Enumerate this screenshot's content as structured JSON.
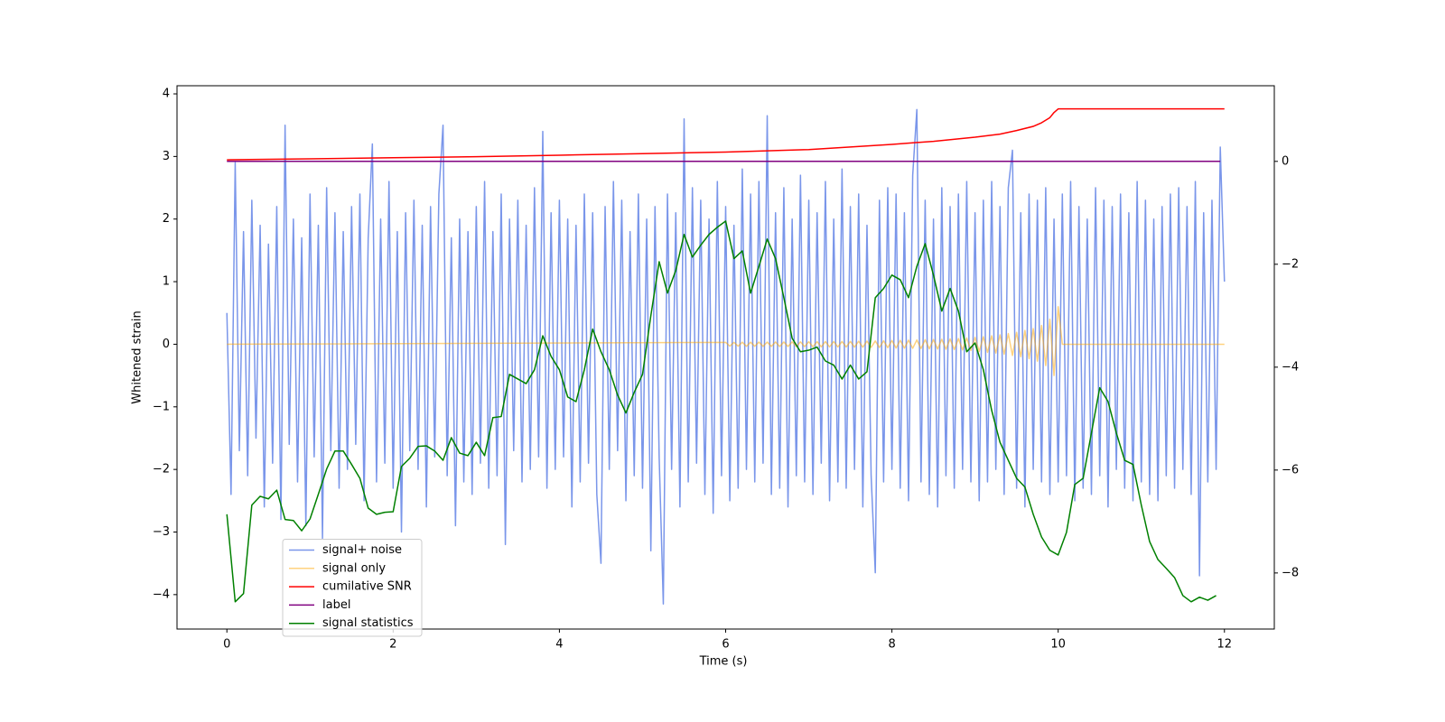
{
  "chart_data": {
    "type": "line",
    "xlabel": "Time (s)",
    "ylabel": "Whitened strain",
    "xlim": [
      -0.6,
      12.6
    ],
    "xticks": [
      0,
      2,
      4,
      6,
      8,
      10,
      12
    ],
    "ylim": [
      -4.55,
      4.13
    ],
    "yticks": [
      {
        "value": -4,
        "label": "−4"
      },
      {
        "value": -3,
        "label": "−3"
      },
      {
        "value": -2,
        "label": "−2"
      },
      {
        "value": -1,
        "label": "−1"
      },
      0,
      1,
      2,
      3,
      4
    ],
    "y2lim": [
      -9.09,
      1.47
    ],
    "y2ticks": [
      {
        "value": -8,
        "label": "−8"
      },
      {
        "value": -6,
        "label": "−6"
      },
      {
        "value": -4,
        "label": "−4"
      },
      {
        "value": -2,
        "label": "−2"
      },
      0
    ],
    "legend": "lower left",
    "series": [
      {
        "name": "signal+ noise",
        "color": "#4169e1",
        "opacity": 0.7,
        "x": [
          0,
          0.05,
          0.1,
          0.15,
          0.2,
          0.25,
          0.3,
          0.35,
          0.4,
          0.45,
          0.5,
          0.55,
          0.6,
          0.65,
          0.7,
          0.75,
          0.8,
          0.85,
          0.9,
          0.95,
          1,
          1.05,
          1.1,
          1.15,
          1.2,
          1.25,
          1.3,
          1.35,
          1.4,
          1.45,
          1.5,
          1.55,
          1.6,
          1.65,
          1.7,
          1.75,
          1.8,
          1.85,
          1.9,
          1.95,
          2,
          2.05,
          2.1,
          2.15,
          2.2,
          2.25,
          2.3,
          2.35,
          2.4,
          2.45,
          2.5,
          2.55,
          2.6,
          2.65,
          2.7,
          2.75,
          2.8,
          2.85,
          2.9,
          2.95,
          3,
          3.05,
          3.1,
          3.15,
          3.2,
          3.25,
          3.3,
          3.35,
          3.4,
          3.45,
          3.5,
          3.55,
          3.6,
          3.65,
          3.7,
          3.75,
          3.8,
          3.85,
          3.9,
          3.95,
          4,
          4.05,
          4.1,
          4.15,
          4.2,
          4.25,
          4.3,
          4.35,
          4.4,
          4.45,
          4.5,
          4.55,
          4.6,
          4.65,
          4.7,
          4.75,
          4.8,
          4.85,
          4.9,
          4.95,
          5,
          5.05,
          5.1,
          5.15,
          5.2,
          5.25,
          5.3,
          5.35,
          5.4,
          5.45,
          5.5,
          5.55,
          5.6,
          5.65,
          5.7,
          5.75,
          5.8,
          5.85,
          5.9,
          5.95,
          6,
          6.05,
          6.1,
          6.15,
          6.2,
          6.25,
          6.3,
          6.35,
          6.4,
          6.45,
          6.5,
          6.55,
          6.6,
          6.65,
          6.7,
          6.75,
          6.8,
          6.85,
          6.9,
          6.95,
          7,
          7.05,
          7.1,
          7.15,
          7.2,
          7.25,
          7.3,
          7.35,
          7.4,
          7.45,
          7.5,
          7.55,
          7.6,
          7.65,
          7.7,
          7.75,
          7.8,
          7.85,
          7.9,
          7.95,
          8,
          8.05,
          8.1,
          8.15,
          8.2,
          8.25,
          8.3,
          8.35,
          8.4,
          8.45,
          8.5,
          8.55,
          8.6,
          8.65,
          8.7,
          8.75,
          8.8,
          8.85,
          8.9,
          8.95,
          9,
          9.05,
          9.1,
          9.15,
          9.2,
          9.25,
          9.3,
          9.35,
          9.4,
          9.45,
          9.5,
          9.55,
          9.6,
          9.65,
          9.7,
          9.75,
          9.8,
          9.85,
          9.9,
          9.95,
          10,
          10.05,
          10.1,
          10.15,
          10.2,
          10.25,
          10.3,
          10.35,
          10.4,
          10.45,
          10.5,
          10.55,
          10.6,
          10.65,
          10.7,
          10.75,
          10.8,
          10.85,
          10.9,
          10.95,
          11,
          11.05,
          11.1,
          11.15,
          11.2,
          11.25,
          11.3,
          11.35,
          11.4,
          11.45,
          11.5,
          11.55,
          11.6,
          11.65,
          11.7,
          11.75,
          11.8,
          11.85,
          11.9,
          11.95,
          12
        ],
        "values": [
          0.5,
          -2.4,
          2.9,
          -1.7,
          1.8,
          -2.1,
          2.3,
          -1.5,
          1.9,
          -2.6,
          1.6,
          -1.9,
          2.2,
          -2.8,
          3.5,
          -1.6,
          2.0,
          -2.2,
          1.7,
          -2.9,
          2.4,
          -1.8,
          1.9,
          -3.1,
          2.5,
          -1.7,
          2.1,
          -2.3,
          1.8,
          -2.0,
          2.2,
          -1.6,
          2.4,
          -2.5,
          1.7,
          3.2,
          -2.2,
          2.0,
          -1.9,
          2.6,
          -2.3,
          1.8,
          -3.0,
          2.1,
          -1.7,
          2.3,
          -2.0,
          1.9,
          -2.6,
          2.2,
          -1.8,
          2.4,
          3.5,
          -2.1,
          1.7,
          -2.9,
          2.0,
          -2.2,
          1.8,
          -2.4,
          2.2,
          -1.9,
          2.6,
          -2.3,
          1.8,
          -2.1,
          2.4,
          -3.2,
          2.0,
          -1.7,
          2.3,
          -2.2,
          1.9,
          -2.0,
          2.5,
          -1.8,
          3.4,
          -2.3,
          2.1,
          -2.0,
          2.3,
          -1.8,
          2.0,
          -2.6,
          1.9,
          -2.2,
          2.4,
          -1.9,
          2.1,
          -2.4,
          -3.5,
          2.2,
          -2.0,
          2.6,
          -1.7,
          2.3,
          -2.5,
          1.8,
          -2.1,
          2.4,
          -2.3,
          2.0,
          -3.3,
          2.2,
          -1.8,
          -4.15,
          2.4,
          -2.0,
          2.1,
          -2.6,
          3.6,
          -2.2,
          2.5,
          -1.9,
          2.3,
          -2.4,
          2.0,
          -2.7,
          2.6,
          -2.1,
          2.2,
          -2.5,
          1.9,
          -2.3,
          2.8,
          -2.0,
          2.4,
          -2.2,
          2.6,
          -1.9,
          3.65,
          -2.4,
          2.1,
          -2.3,
          2.5,
          -2.6,
          2.0,
          -2.1,
          2.7,
          -2.2,
          2.3,
          -2.4,
          2.1,
          -1.9,
          2.6,
          -2.5,
          2.0,
          -2.2,
          2.8,
          -2.3,
          2.2,
          -2.0,
          2.4,
          -2.6,
          1.9,
          -2.1,
          -3.65,
          2.3,
          -2.2,
          2.5,
          -2.0,
          2.4,
          -2.3,
          2.1,
          -2.5,
          2.7,
          3.75,
          -2.2,
          2.3,
          -2.4,
          2.0,
          -2.6,
          2.5,
          -2.1,
          2.2,
          -2.3,
          2.4,
          -2.0,
          2.6,
          -2.2,
          2.1,
          -2.5,
          2.3,
          -2.2,
          2.6,
          -2.0,
          2.2,
          -2.4,
          2.5,
          3.1,
          -2.3,
          2.1,
          -2.6,
          2.4,
          -2.0,
          2.3,
          -2.2,
          2.5,
          -2.4,
          2.0,
          -2.2,
          2.4,
          -2.1,
          2.6,
          -2.5,
          2.2,
          -2.3,
          2.0,
          -2.4,
          2.5,
          -2.1,
          2.3,
          -2.6,
          2.2,
          -2.0,
          2.4,
          -2.3,
          2.1,
          -2.5,
          2.6,
          -2.2,
          2.3,
          -2.4,
          2.0,
          -2.5,
          2.2,
          -2.1,
          2.4,
          -2.3,
          2.5,
          -2.0,
          2.2,
          -2.4,
          2.6,
          -3.7,
          2.1,
          -2.2,
          2.3,
          -2.0,
          3.15,
          1.0
        ]
      },
      {
        "name": "signal only",
        "color": "#ffa500",
        "opacity": 0.5,
        "x": [
          0,
          6,
          6.05,
          6.1,
          6.15,
          6.2,
          6.25,
          6.3,
          6.35,
          6.4,
          6.45,
          6.5,
          6.55,
          6.6,
          6.65,
          6.7,
          6.75,
          6.8,
          6.85,
          6.9,
          6.95,
          7,
          7.05,
          7.1,
          7.15,
          7.2,
          7.25,
          7.3,
          7.35,
          7.4,
          7.45,
          7.5,
          7.55,
          7.6,
          7.65,
          7.7,
          7.75,
          7.8,
          7.85,
          7.9,
          7.95,
          8,
          8.05,
          8.1,
          8.15,
          8.2,
          8.25,
          8.3,
          8.35,
          8.4,
          8.45,
          8.5,
          8.55,
          8.6,
          8.65,
          8.7,
          8.75,
          8.8,
          8.85,
          8.9,
          8.95,
          9,
          9.05,
          9.1,
          9.15,
          9.2,
          9.25,
          9.3,
          9.35,
          9.4,
          9.45,
          9.5,
          9.55,
          9.6,
          9.65,
          9.7,
          9.75,
          9.8,
          9.85,
          9.9,
          9.95,
          10,
          10.05,
          12
        ],
        "values": [
          0,
          0.03,
          -0.03,
          0.03,
          -0.03,
          0.032,
          -0.032,
          0.032,
          -0.032,
          0.034,
          -0.034,
          0.034,
          -0.034,
          0.036,
          -0.036,
          0.036,
          -0.036,
          0.038,
          -0.038,
          0.038,
          -0.038,
          0.04,
          -0.04,
          0.041,
          -0.041,
          0.042,
          -0.042,
          0.043,
          -0.043,
          0.044,
          -0.044,
          0.046,
          -0.046,
          0.048,
          -0.048,
          0.05,
          -0.05,
          0.052,
          -0.052,
          0.055,
          -0.055,
          0.06,
          -0.06,
          0.062,
          -0.062,
          0.065,
          -0.065,
          0.068,
          -0.068,
          0.072,
          -0.072,
          0.076,
          -0.076,
          0.08,
          -0.08,
          0.085,
          -0.085,
          0.09,
          -0.09,
          0.1,
          -0.1,
          0.11,
          -0.115,
          0.12,
          -0.13,
          0.135,
          -0.14,
          0.15,
          -0.16,
          0.17,
          -0.18,
          0.19,
          -0.2,
          0.22,
          -0.23,
          0.25,
          -0.27,
          0.3,
          -0.34,
          0.4,
          -0.5,
          0.6,
          0,
          0
        ]
      },
      {
        "name": "cumilative SNR",
        "color": "#ff0000",
        "axis": "y2",
        "x": [
          0,
          1,
          2,
          3,
          4,
          5,
          6,
          7,
          8,
          8.5,
          9,
          9.3,
          9.5,
          9.7,
          9.8,
          9.9,
          9.95,
          10,
          12
        ],
        "values": [
          0.03,
          0.05,
          0.07,
          0.09,
          0.12,
          0.15,
          0.18,
          0.23,
          0.33,
          0.39,
          0.47,
          0.53,
          0.6,
          0.68,
          0.75,
          0.85,
          0.95,
          1.02,
          1.02
        ]
      },
      {
        "name": "label",
        "color": "#800080",
        "axis": "y2",
        "x": [
          0,
          11.95
        ],
        "values": [
          0,
          0
        ]
      },
      {
        "name": "signal statistics",
        "color": "#008000",
        "axis": "y2",
        "x": [
          0,
          0.1,
          0.2,
          0.3,
          0.4,
          0.5,
          0.6,
          0.7,
          0.8,
          0.9,
          1,
          1.1,
          1.2,
          1.3,
          1.4,
          1.5,
          1.6,
          1.7,
          1.8,
          1.9,
          2,
          2.1,
          2.2,
          2.3,
          2.4,
          2.5,
          2.6,
          2.7,
          2.8,
          2.9,
          3,
          3.1,
          3.2,
          3.3,
          3.4,
          3.5,
          3.6,
          3.7,
          3.8,
          3.9,
          4,
          4.1,
          4.2,
          4.3,
          4.4,
          4.5,
          4.6,
          4.7,
          4.8,
          4.9,
          5,
          5.1,
          5.2,
          5.3,
          5.4,
          5.5,
          5.6,
          5.7,
          5.8,
          5.9,
          6,
          6.1,
          6.2,
          6.3,
          6.4,
          6.5,
          6.6,
          6.7,
          6.8,
          6.9,
          7,
          7.1,
          7.2,
          7.3,
          7.4,
          7.5,
          7.6,
          7.7,
          7.8,
          7.9,
          8,
          8.1,
          8.2,
          8.3,
          8.4,
          8.5,
          8.6,
          8.7,
          8.8,
          8.9,
          9,
          9.1,
          9.2,
          9.3,
          9.4,
          9.5,
          9.6,
          9.7,
          9.8,
          9.9,
          10,
          10.1,
          10.2,
          10.3,
          10.4,
          10.5,
          10.6,
          10.7,
          10.8,
          10.9,
          11,
          11.1,
          11.2,
          11.3,
          11.4,
          11.5,
          11.6,
          11.7,
          11.8,
          11.9
        ],
        "values": [
          -6.86,
          -8.56,
          -8.4,
          -6.68,
          -6.51,
          -6.56,
          -6.39,
          -6.96,
          -6.98,
          -7.18,
          -6.95,
          -6.47,
          -5.98,
          -5.63,
          -5.63,
          -5.89,
          -6.16,
          -6.74,
          -6.86,
          -6.82,
          -6.81,
          -5.93,
          -5.77,
          -5.54,
          -5.53,
          -5.63,
          -5.81,
          -5.37,
          -5.67,
          -5.72,
          -5.46,
          -5.72,
          -4.98,
          -4.96,
          -4.14,
          -4.23,
          -4.32,
          -4.05,
          -3.39,
          -3.79,
          -4.05,
          -4.58,
          -4.67,
          -4.05,
          -3.26,
          -3.7,
          -4.05,
          -4.54,
          -4.89,
          -4.49,
          -4.14,
          -3.0,
          -1.95,
          -2.56,
          -2.12,
          -1.42,
          -1.86,
          -1.63,
          -1.42,
          -1.28,
          -1.16,
          -1.89,
          -1.74,
          -2.56,
          -2.04,
          -1.51,
          -1.89,
          -2.65,
          -3.44,
          -3.7,
          -3.67,
          -3.61,
          -3.88,
          -3.96,
          -4.23,
          -3.96,
          -4.23,
          -4.09,
          -2.65,
          -2.47,
          -2.21,
          -2.3,
          -2.65,
          -2.04,
          -1.6,
          -2.21,
          -2.91,
          -2.47,
          -2.91,
          -3.7,
          -3.53,
          -4.05,
          -4.84,
          -5.46,
          -5.81,
          -6.16,
          -6.33,
          -6.86,
          -7.3,
          -7.56,
          -7.65,
          -7.21,
          -6.28,
          -6.16,
          -5.28,
          -4.4,
          -4.67,
          -5.28,
          -5.81,
          -5.89,
          -6.68,
          -7.39,
          -7.74,
          -7.91,
          -8.09,
          -8.44,
          -8.56,
          -8.47,
          -8.53,
          -8.44
        ]
      }
    ]
  }
}
